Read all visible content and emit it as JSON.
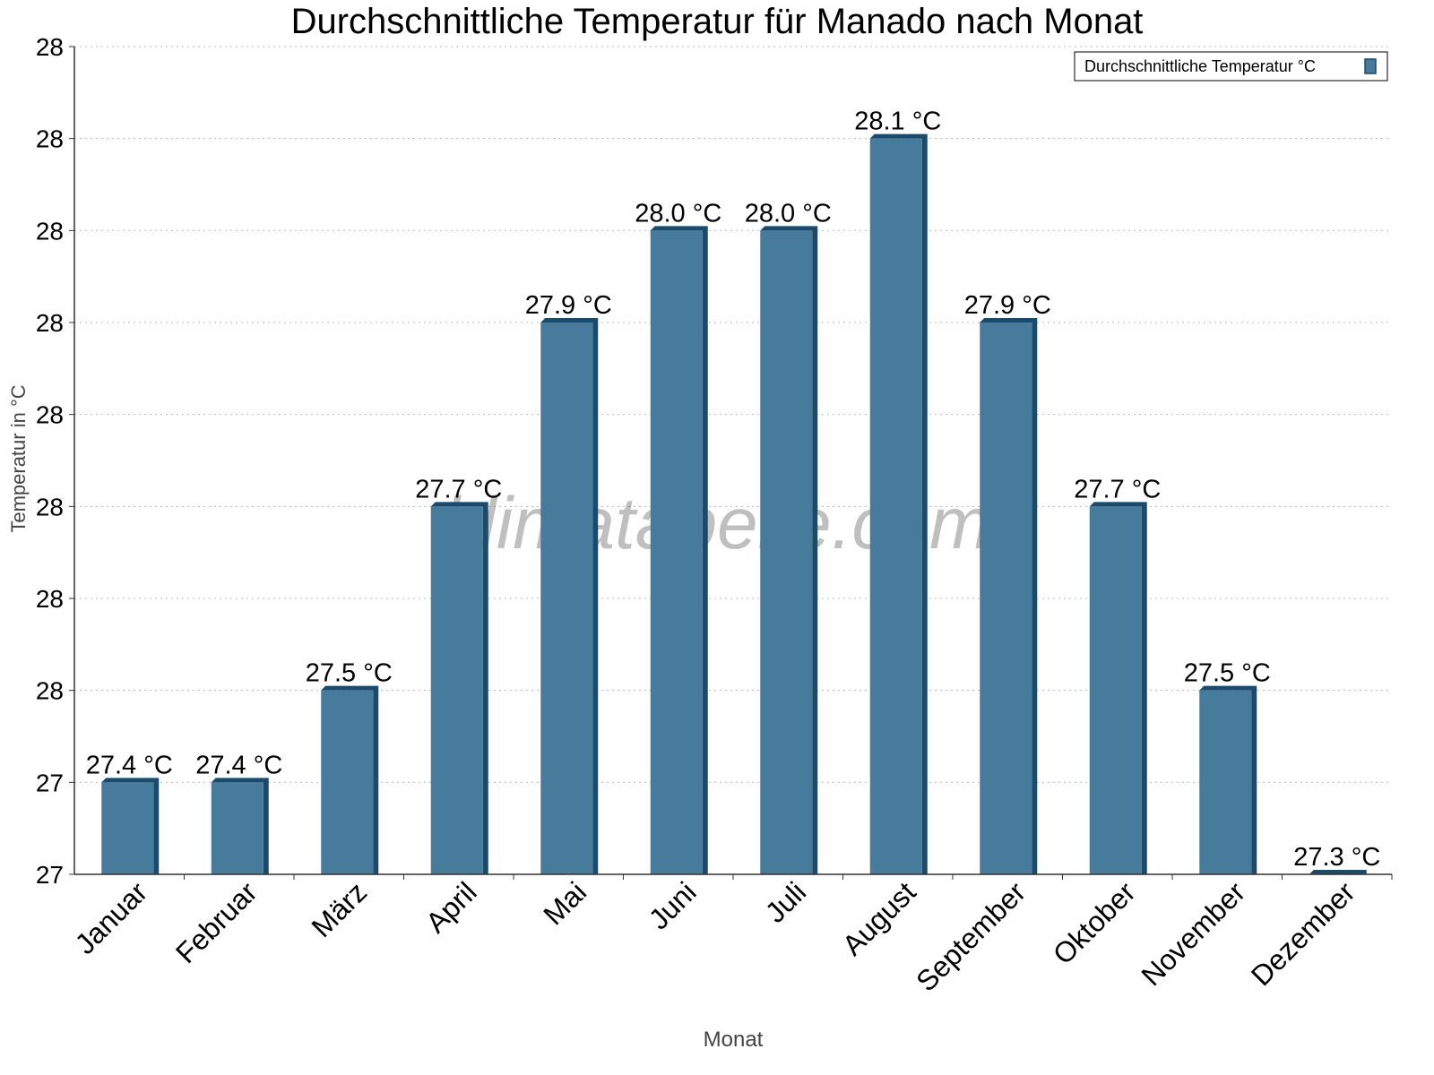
{
  "chart_data": {
    "type": "bar",
    "title": "Durchschnittliche Temperatur für Manado nach Monat",
    "xlabel": "Monat",
    "ylabel": "Temperatur in °C",
    "categories": [
      "Januar",
      "Februar",
      "März",
      "April",
      "Mai",
      "Juni",
      "Juli",
      "August",
      "September",
      "Oktober",
      "November",
      "Dezember"
    ],
    "series": [
      {
        "name": "Durchschnittliche Temperatur °C",
        "values": [
          27.4,
          27.4,
          27.5,
          27.7,
          27.9,
          28.0,
          28.0,
          28.1,
          27.9,
          27.7,
          27.5,
          27.3
        ],
        "labels": [
          "27.4 °C",
          "27.4 °C",
          "27.5 °C",
          "27.7 °C",
          "27.9 °C",
          "28.0 °C",
          "28.0 °C",
          "28.1 °C",
          "27.9 °C",
          "27.7 °C",
          "27.5 °C",
          "27.3 °C"
        ]
      }
    ],
    "ylim": [
      27.3,
      28.2
    ],
    "yticks": [
      27.3,
      27.4,
      27.5,
      27.6,
      27.7,
      27.8,
      27.9,
      28.0,
      28.1,
      28.2
    ],
    "ytick_labels": [
      "27",
      "27",
      "28",
      "28",
      "28",
      "28",
      "28",
      "28",
      "28",
      "28"
    ],
    "grid": true,
    "legend": "top-right",
    "colors": {
      "bar_face": "#467b9c",
      "bar_side": "#1b4a6b"
    }
  },
  "watermark": "klimatabelle.com"
}
